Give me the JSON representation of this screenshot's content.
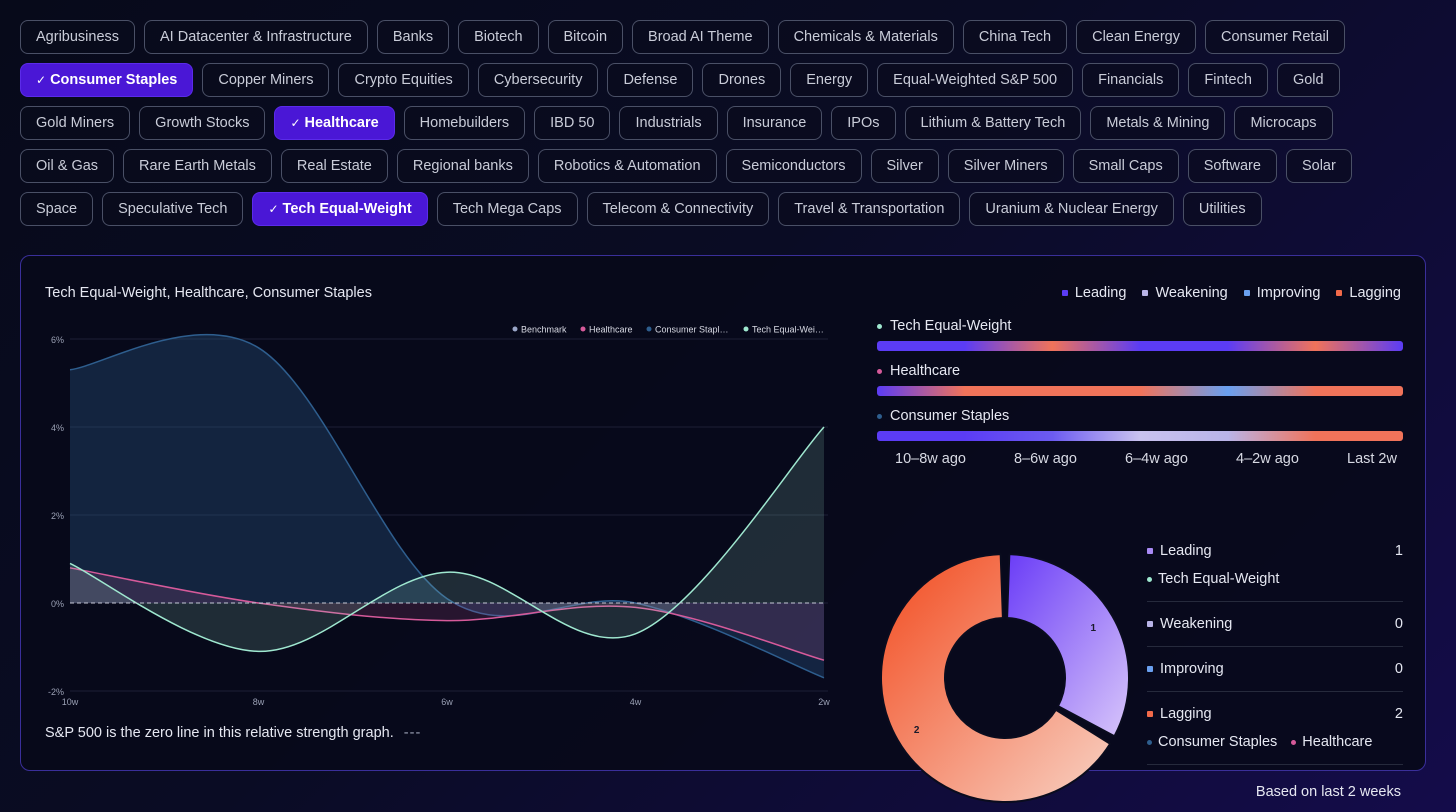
{
  "chips": [
    {
      "label": "Agribusiness",
      "selected": false
    },
    {
      "label": "AI Datacenter & Infrastructure",
      "selected": false
    },
    {
      "label": "Banks",
      "selected": false
    },
    {
      "label": "Biotech",
      "selected": false
    },
    {
      "label": "Bitcoin",
      "selected": false
    },
    {
      "label": "Broad AI Theme",
      "selected": false
    },
    {
      "label": "Chemicals & Materials",
      "selected": false
    },
    {
      "label": "China Tech",
      "selected": false
    },
    {
      "label": "Clean Energy",
      "selected": false
    },
    {
      "label": "Consumer Retail",
      "selected": false
    },
    {
      "label": "Consumer Staples",
      "selected": true
    },
    {
      "label": "Copper Miners",
      "selected": false
    },
    {
      "label": "Crypto Equities",
      "selected": false
    },
    {
      "label": "Cybersecurity",
      "selected": false
    },
    {
      "label": "Defense",
      "selected": false
    },
    {
      "label": "Drones",
      "selected": false
    },
    {
      "label": "Energy",
      "selected": false
    },
    {
      "label": "Equal-Weighted S&P 500",
      "selected": false
    },
    {
      "label": "Financials",
      "selected": false
    },
    {
      "label": "Fintech",
      "selected": false
    },
    {
      "label": "Gold",
      "selected": false
    },
    {
      "label": "Gold Miners",
      "selected": false
    },
    {
      "label": "Growth Stocks",
      "selected": false
    },
    {
      "label": "Healthcare",
      "selected": true
    },
    {
      "label": "Homebuilders",
      "selected": false
    },
    {
      "label": "IBD 50",
      "selected": false
    },
    {
      "label": "Industrials",
      "selected": false
    },
    {
      "label": "Insurance",
      "selected": false
    },
    {
      "label": "IPOs",
      "selected": false
    },
    {
      "label": "Lithium & Battery Tech",
      "selected": false
    },
    {
      "label": "Metals & Mining",
      "selected": false
    },
    {
      "label": "Microcaps",
      "selected": false
    },
    {
      "label": "Oil & Gas",
      "selected": false
    },
    {
      "label": "Rare Earth Metals",
      "selected": false
    },
    {
      "label": "Real Estate",
      "selected": false
    },
    {
      "label": "Regional banks",
      "selected": false
    },
    {
      "label": "Robotics & Automation",
      "selected": false
    },
    {
      "label": "Semiconductors",
      "selected": false
    },
    {
      "label": "Silver",
      "selected": false
    },
    {
      "label": "Silver Miners",
      "selected": false
    },
    {
      "label": "Small Caps",
      "selected": false
    },
    {
      "label": "Software",
      "selected": false
    },
    {
      "label": "Solar",
      "selected": false
    },
    {
      "label": "Space",
      "selected": false
    },
    {
      "label": "Speculative Tech",
      "selected": false
    },
    {
      "label": "Tech Equal-Weight",
      "selected": true
    },
    {
      "label": "Tech Mega Caps",
      "selected": false
    },
    {
      "label": "Telecom & Connectivity",
      "selected": false
    },
    {
      "label": "Travel & Transportation",
      "selected": false
    },
    {
      "label": "Uranium & Nuclear Energy",
      "selected": false
    },
    {
      "label": "Utilities",
      "selected": false
    }
  ],
  "panel": {
    "title": "Tech Equal-Weight, Healthcare, Consumer Staples",
    "footnote": "S&P 500 is the zero line in this relative strength graph.",
    "footnote_dash": "---",
    "based_on": "Based on last 2 weeks"
  },
  "status_legend": [
    {
      "label": "Leading",
      "color": "#5b3cf5"
    },
    {
      "label": "Weakening",
      "color": "#b9b4e8"
    },
    {
      "label": "Improving",
      "color": "#6aa0f0"
    },
    {
      "label": "Lagging",
      "color": "#f26a4a"
    }
  ],
  "chart_data": {
    "type": "area",
    "legend": [
      "Benchmark",
      "Healthcare",
      "Consumer Stapl…",
      "Tech Equal-Wei…"
    ],
    "x": [
      "10w",
      "8w",
      "6w",
      "4w",
      "2w"
    ],
    "ylim": [
      -2,
      6
    ],
    "y_ticks": [
      "6%",
      "4%",
      "2%",
      "0%",
      "-2%"
    ],
    "series": [
      {
        "name": "Benchmark",
        "color": "#9aa6c8",
        "values": [
          0,
          0,
          0,
          0,
          0
        ]
      },
      {
        "name": "Healthcare",
        "color": "#d65a9a",
        "values": [
          0.8,
          0.0,
          -0.4,
          -0.1,
          -1.3
        ]
      },
      {
        "name": "Consumer Staples",
        "color": "#2e5e8e",
        "values": [
          5.3,
          5.8,
          0.1,
          0.0,
          -1.7
        ]
      },
      {
        "name": "Tech Equal-Weight",
        "color": "#9fe8d0",
        "values": [
          0.9,
          -1.1,
          0.7,
          -0.7,
          4.0
        ]
      }
    ]
  },
  "trend_bars": {
    "rows": [
      {
        "label": "Tech Equal-Weight",
        "dot": "#9fe8d0",
        "stops": [
          "#5b3cf5",
          "#5b3cf5",
          "#f0735a",
          "#5b3cf5",
          "#5b3cf5",
          "#f0735a",
          "#5b3cf5"
        ]
      },
      {
        "label": "Healthcare",
        "dot": "#d65a9a",
        "stops": [
          "#5b3cf5",
          "#f0735a",
          "#f0735a",
          "#f0735a",
          "#6aa0f0",
          "#f0735a",
          "#f0735a"
        ]
      },
      {
        "label": "Consumer Staples",
        "dot": "#2e5e8e",
        "stops": [
          "#5b3cf5",
          "#5b3cf5",
          "#6c5bf0",
          "#c9c2ef",
          "#b9b4e8",
          "#f0735a",
          "#f0735a"
        ]
      }
    ],
    "axis": [
      "10–8w ago",
      "8–6w ago",
      "6–4w ago",
      "4–2w ago",
      "Last 2w"
    ]
  },
  "donut": {
    "segments": [
      {
        "label": "Leading",
        "value": 1,
        "label_text": "1"
      },
      {
        "label": "Lagging",
        "value": 2,
        "label_text": "2"
      }
    ]
  },
  "status_counts": [
    {
      "label": "Leading",
      "count": "1",
      "color": "#a98af5",
      "members": [
        {
          "name": "Tech Equal-Weight",
          "dot": "#9fe8d0"
        }
      ]
    },
    {
      "label": "Weakening",
      "count": "0",
      "color": "#b9b4e8",
      "members": []
    },
    {
      "label": "Improving",
      "count": "0",
      "color": "#6aa0f0",
      "members": []
    },
    {
      "label": "Lagging",
      "count": "2",
      "color": "#f26a4a",
      "members": [
        {
          "name": "Consumer Staples",
          "dot": "#2e5e8e"
        },
        {
          "name": "Healthcare",
          "dot": "#d65a9a"
        }
      ]
    }
  ]
}
